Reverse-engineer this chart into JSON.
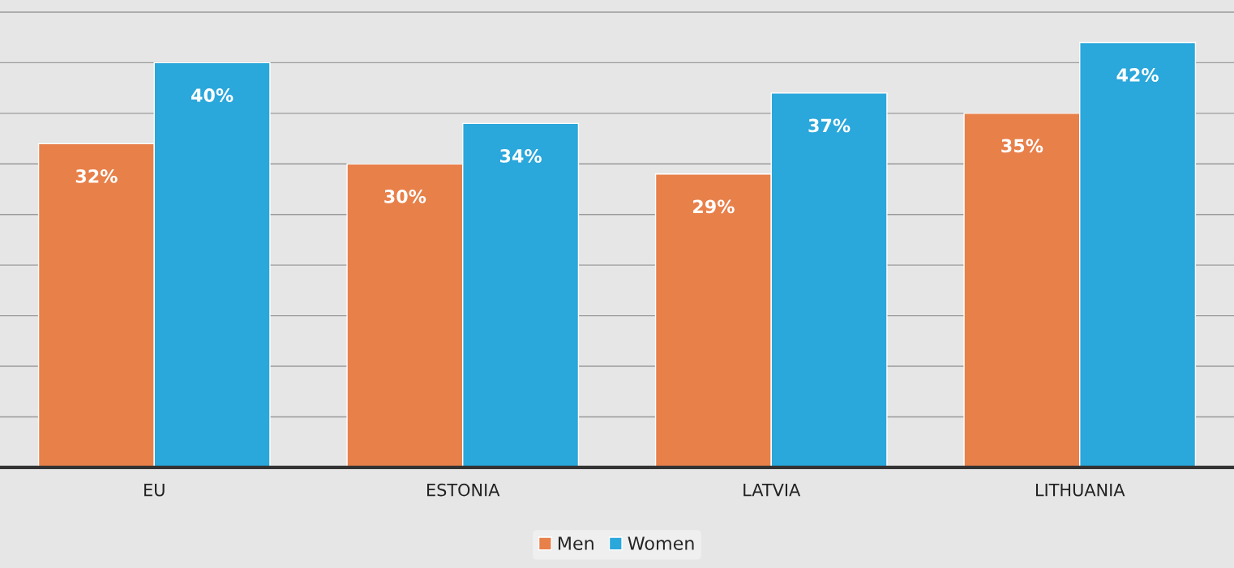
{
  "chart_data": {
    "type": "bar",
    "categories": [
      "EU",
      "ESTONIA",
      "LATVIA",
      "LITHUANIA"
    ],
    "series": [
      {
        "name": "Men",
        "color": "#e8804a",
        "values": [
          32,
          30,
          29,
          35
        ],
        "value_labels": [
          "32%",
          "30%",
          "29%",
          "35%"
        ]
      },
      {
        "name": "Women",
        "color": "#2aa7db",
        "values": [
          40,
          34,
          37,
          42
        ],
        "value_labels": [
          "40%",
          "34%",
          "37%",
          "42%"
        ]
      }
    ],
    "ylim": [
      0,
      46.2
    ],
    "yticks": [
      {
        "value": 0,
        "label": null
      },
      {
        "value": 5,
        "label": null
      },
      {
        "value": 10,
        "label": null
      },
      {
        "value": 15,
        "label": null
      },
      {
        "value": 20,
        "label": null
      },
      {
        "value": 25,
        "label": null
      },
      {
        "value": 30,
        "label": null
      },
      {
        "value": 35,
        "label": null
      },
      {
        "value": 40,
        "label": null
      },
      {
        "value": 45,
        "label": null
      }
    ],
    "grid": "y",
    "legend": "bottom"
  }
}
